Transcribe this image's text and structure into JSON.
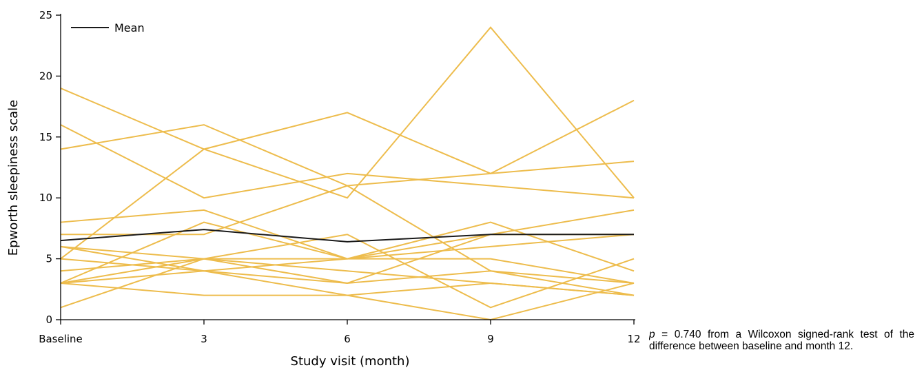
{
  "chart_data": {
    "type": "line",
    "title": "",
    "xlabel": "Study visit (month)",
    "ylabel": "Epworth sleepiness scale",
    "categories": [
      "Baseline",
      "3",
      "6",
      "9",
      "12"
    ],
    "x": [
      0,
      3,
      6,
      9,
      12
    ],
    "ylim": [
      0,
      25
    ],
    "yticks": [
      0,
      5,
      10,
      15,
      20,
      25
    ],
    "grid": false,
    "legend": {
      "placement": "top-left",
      "entries": [
        "Mean"
      ]
    },
    "colors": {
      "individual": "#EDBC4C",
      "mean": "#1a1a1a"
    },
    "series": [
      {
        "name": "Mean",
        "values": [
          6.5,
          7.4,
          6.4,
          7.0,
          7.0
        ]
      },
      {
        "values": [
          19,
          14,
          10,
          24,
          10
        ]
      },
      {
        "values": [
          14,
          16,
          11,
          12,
          18
        ]
      },
      {
        "values": [
          16,
          10,
          12,
          11,
          10
        ]
      },
      {
        "values": [
          5,
          14,
          17,
          12,
          13
        ]
      },
      {
        "values": [
          8,
          9,
          5,
          7,
          9
        ]
      },
      {
        "values": [
          7,
          7,
          11,
          4,
          2
        ]
      },
      {
        "values": [
          3,
          8,
          5,
          8,
          4
        ]
      },
      {
        "values": [
          6,
          5,
          7,
          1,
          5
        ]
      },
      {
        "values": [
          6,
          4,
          3,
          7,
          7
        ]
      },
      {
        "values": [
          4,
          5,
          5,
          5,
          3
        ]
      },
      {
        "values": [
          5,
          4,
          5,
          6,
          7
        ]
      },
      {
        "values": [
          3,
          5,
          3,
          4,
          3
        ]
      },
      {
        "values": [
          3,
          2,
          2,
          0,
          3
        ]
      },
      {
        "values": [
          1,
          5,
          4,
          3,
          2
        ]
      },
      {
        "values": [
          3,
          4,
          2,
          3,
          2
        ]
      }
    ]
  },
  "note": {
    "p_symbol": "p",
    "text": " = 0.740 from a Wilcoxon signed-rank test of the difference between baseline and month 12."
  }
}
